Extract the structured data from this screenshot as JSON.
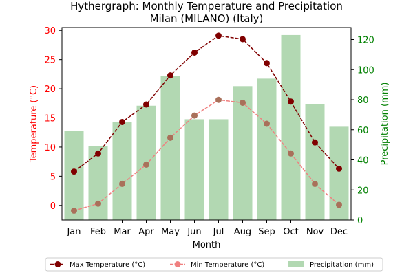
{
  "chart_data": {
    "type": "bar+line",
    "title_line1": "Hythergraph: Monthly Temperature and Precipitation",
    "title_line2": "Milan (MILANO) (Italy)",
    "xlabel": "Month",
    "ylabel_left": "Temperature (°C)",
    "ylabel_right": "Precipitation (mm)",
    "categories": [
      "Jan",
      "Feb",
      "Mar",
      "Apr",
      "May",
      "Jun",
      "Jul",
      "Aug",
      "Sep",
      "Oct",
      "Nov",
      "Dec"
    ],
    "ylim_left": [
      -2.5,
      30.5
    ],
    "yticks_left": [
      0,
      5,
      10,
      15,
      20,
      25,
      30
    ],
    "ylim_right": [
      0,
      128
    ],
    "yticks_right": [
      0,
      20,
      40,
      60,
      80,
      100,
      120
    ],
    "series": [
      {
        "name": "Max Temperature (°C)",
        "axis": "left",
        "kind": "line",
        "values": [
          5.8,
          8.9,
          14.3,
          17.3,
          22.3,
          26.2,
          29.1,
          28.5,
          24.4,
          17.8,
          10.8,
          6.3
        ]
      },
      {
        "name": "Min Temperature (°C)",
        "axis": "left",
        "kind": "line",
        "values": [
          -0.9,
          0.3,
          3.7,
          7.0,
          11.6,
          15.4,
          18.1,
          17.6,
          14.0,
          8.9,
          3.7,
          0.1
        ]
      },
      {
        "name": "Precipitation (mm)",
        "axis": "right",
        "kind": "bar",
        "values": [
          59,
          49,
          65,
          76,
          96,
          67,
          67,
          89,
          94,
          123,
          77,
          62
        ]
      }
    ],
    "legend_position": "bottom-center",
    "grid": false
  },
  "colors": {
    "max_line": "#800000",
    "min_line": "#f08080",
    "precip_bar": "#b2d8b2",
    "left_axis": "#ff0000",
    "right_axis": "#008000"
  }
}
